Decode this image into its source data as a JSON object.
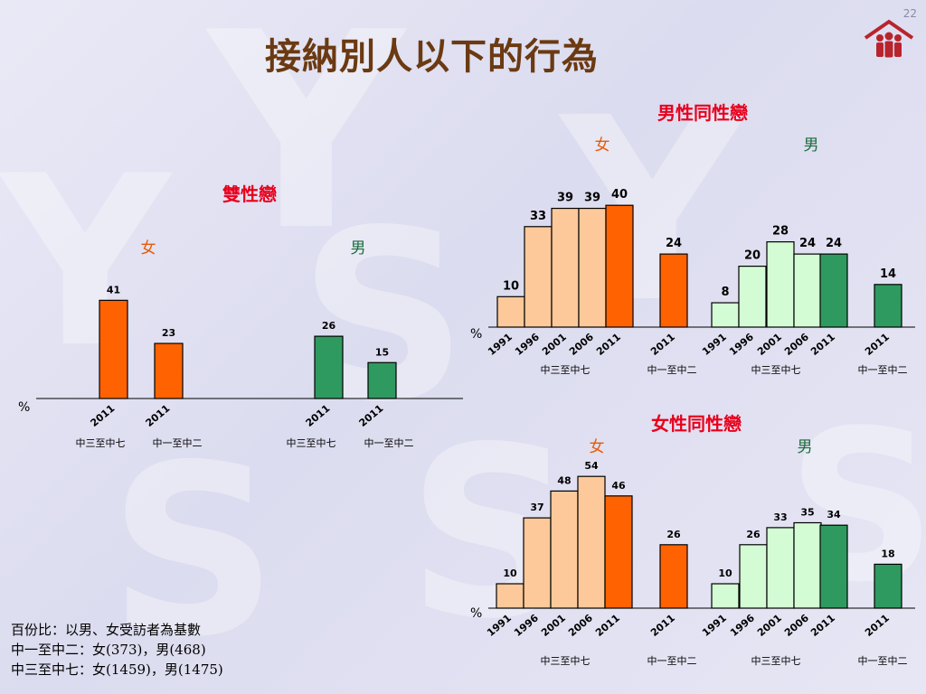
{
  "page_number": "22",
  "title": "接納別人以下的行為",
  "footnote": [
    "百份比：以男、女受訪者為基數",
    "中一至中二：女(373)，男(468)",
    "中三至中七：女(1459)，男(1475)"
  ],
  "colors": {
    "female_trend": "#fdc99a",
    "female_2011": "#ff6200",
    "male_trend": "#d4fcd4",
    "male_2011": "#2f9a5f",
    "panel_title": "#e8001c"
  },
  "chart_data": [
    {
      "type": "bar",
      "title": "雙性戀",
      "unit": "%",
      "female_label": "女",
      "male_label": "男",
      "groups": [
        {
          "sex": "女",
          "group": "中三至中七",
          "x": [
            "2011"
          ],
          "values": [
            41
          ]
        },
        {
          "sex": "女",
          "group": "中一至中二",
          "x": [
            "2011"
          ],
          "values": [
            23
          ]
        },
        {
          "sex": "男",
          "group": "中三至中七",
          "x": [
            "2011"
          ],
          "values": [
            26
          ]
        },
        {
          "sex": "男",
          "group": "中一至中二",
          "x": [
            "2011"
          ],
          "values": [
            15
          ]
        }
      ]
    },
    {
      "type": "bar",
      "title": "男性同性戀",
      "unit": "%",
      "female_label": "女",
      "male_label": "男",
      "groups": [
        {
          "sex": "女",
          "group": "中三至中七",
          "x": [
            "1991",
            "1996",
            "2001",
            "2006",
            "2011"
          ],
          "values": [
            10,
            33,
            39,
            39,
            40
          ]
        },
        {
          "sex": "女",
          "group": "中一至中二",
          "x": [
            "2011"
          ],
          "values": [
            24
          ]
        },
        {
          "sex": "男",
          "group": "中三至中七",
          "x": [
            "1991",
            "1996",
            "2001",
            "2006",
            "2011"
          ],
          "values": [
            8,
            20,
            28,
            24,
            24
          ]
        },
        {
          "sex": "男",
          "group": "中一至中二",
          "x": [
            "2011"
          ],
          "values": [
            14
          ]
        }
      ]
    },
    {
      "type": "bar",
      "title": "女性同性戀",
      "unit": "%",
      "female_label": "女",
      "male_label": "男",
      "groups": [
        {
          "sex": "女",
          "group": "中三至中七",
          "x": [
            "1991",
            "1996",
            "2001",
            "2006",
            "2011"
          ],
          "values": [
            10,
            37,
            48,
            54,
            46
          ]
        },
        {
          "sex": "女",
          "group": "中一至中二",
          "x": [
            "2011"
          ],
          "values": [
            26
          ]
        },
        {
          "sex": "男",
          "group": "中三至中七",
          "x": [
            "1991",
            "1996",
            "2001",
            "2006",
            "2011"
          ],
          "values": [
            10,
            26,
            33,
            35,
            34
          ]
        },
        {
          "sex": "男",
          "group": "中一至中二",
          "x": [
            "2011"
          ],
          "values": [
            18
          ]
        }
      ]
    }
  ]
}
